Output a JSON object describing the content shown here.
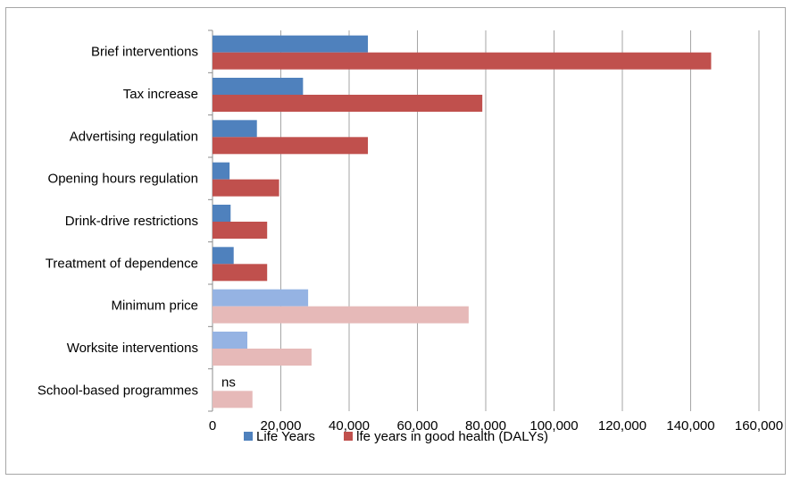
{
  "chart_data": {
    "type": "bar",
    "orientation": "horizontal",
    "categories": [
      "Brief interventions",
      "Tax increase",
      "Advertising regulation",
      "Opening hours regulation",
      "Drink-drive restrictions",
      "Treatment of dependence",
      "Minimum price",
      "Worksite interventions",
      "School-based programmes"
    ],
    "series": [
      {
        "name": "Life Years",
        "color": "#4f81bd",
        "light_color": "#95b3e3",
        "values": [
          45500,
          26500,
          13000,
          5000,
          5300,
          6200,
          28000,
          10200,
          null
        ],
        "light": [
          false,
          false,
          false,
          false,
          false,
          false,
          true,
          true,
          true
        ]
      },
      {
        "name": "lfe years in good health (DALYs)",
        "color": "#c0504d",
        "light_color": "#e6b9b8",
        "values": [
          146000,
          79000,
          45500,
          19500,
          16000,
          16000,
          75000,
          29000,
          11700
        ],
        "light": [
          false,
          false,
          false,
          false,
          false,
          false,
          true,
          true,
          true
        ]
      }
    ],
    "annotations": [
      {
        "category": "School-based programmes",
        "series": "Life Years",
        "text": "ns"
      }
    ],
    "xlim": [
      0,
      160000
    ],
    "x_ticks": [
      "0",
      "20,000",
      "40,000",
      "60,000",
      "80,000",
      "100,000",
      "120,000",
      "140,000",
      "160,000"
    ],
    "grid": true,
    "legend_position": "bottom"
  }
}
